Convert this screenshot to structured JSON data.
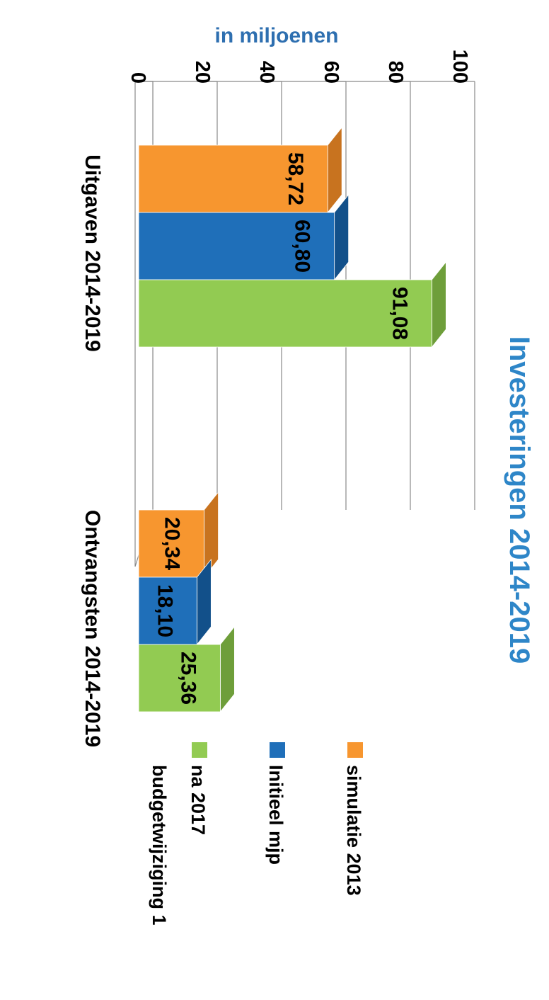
{
  "chart_data": {
    "type": "bar",
    "title": "Investeringen 2014-2019",
    "ylabel": "in miljoenen",
    "ylim": [
      0,
      100
    ],
    "yticks": [
      "0",
      "20",
      "40",
      "60",
      "80",
      "100"
    ],
    "categories": [
      "Uitgaven 2014-2019",
      "Ontvangsten 2014-2019"
    ],
    "series": [
      {
        "name": "simulatie 2013",
        "values": [
          58.72,
          20.34
        ],
        "labels": [
          "58,72",
          "20,34"
        ]
      },
      {
        "name": "Initieel mjp",
        "values": [
          60.8,
          18.1
        ],
        "labels": [
          "60,80",
          "18,10"
        ]
      },
      {
        "name": "na 2017 budgetwijziging 1",
        "name_lines": [
          "na 2017",
          "budgetwijziging 1"
        ],
        "values": [
          91.08,
          25.36
        ],
        "labels": [
          "91,08",
          "25,36"
        ]
      }
    ],
    "grid": true,
    "legend_position": "right",
    "colors": {
      "series": [
        "#F7962F",
        "#1F6FB9",
        "#92CB52"
      ],
      "series_dark": [
        "#C8731F",
        "#12508A",
        "#6E9E3A"
      ],
      "title": "#2E86C8",
      "ylabel": "#2E6FB0"
    }
  }
}
